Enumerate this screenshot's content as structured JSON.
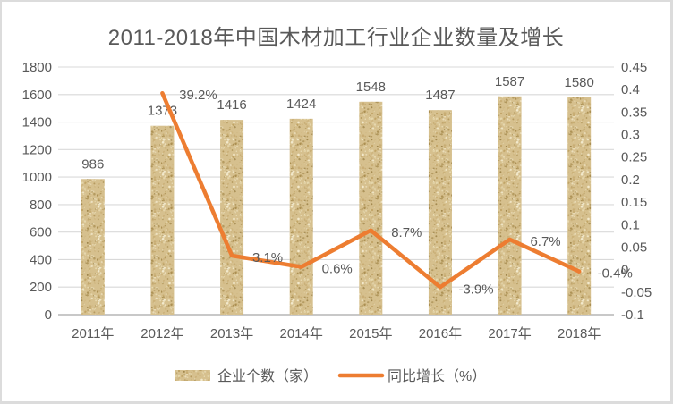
{
  "chart_data": {
    "type": "combo-bar-line",
    "title": "2011-2018年中国木材加工行业企业数量及增长",
    "categories": [
      "2011年",
      "2012年",
      "2013年",
      "2014年",
      "2015年",
      "2016年",
      "2017年",
      "2018年"
    ],
    "series": [
      {
        "name": "企业个数（家）",
        "chart_type": "bar",
        "axis": "left",
        "values": [
          986,
          1373,
          1416,
          1424,
          1548,
          1487,
          1587,
          1580
        ],
        "data_labels": [
          "986",
          "1373",
          "1416",
          "1424",
          "1548",
          "1487",
          "1587",
          "1580"
        ]
      },
      {
        "name": "同比增长（%）",
        "chart_type": "line",
        "axis": "right",
        "values": [
          null,
          0.392,
          0.031,
          0.006,
          0.087,
          -0.039,
          0.067,
          -0.004
        ],
        "data_labels": [
          "",
          "39.2%",
          "3.1%",
          "0.6%",
          "8.7%",
          "-3.9%",
          "6.7%",
          "-0.4%"
        ]
      }
    ],
    "left_axis": {
      "min": 0,
      "max": 1800,
      "tick_labels": [
        "1800",
        "1600",
        "1400",
        "1200",
        "1000",
        "800",
        "600",
        "400",
        "200",
        "0"
      ]
    },
    "right_axis": {
      "min": -0.1,
      "max": 0.45,
      "tick_labels": [
        "0.45",
        "0.4",
        "0.35",
        "0.3",
        "0.25",
        "0.2",
        "0.15",
        "0.1",
        "0.05",
        "0",
        "-0.05",
        "-0.1"
      ]
    },
    "grid": true,
    "legend_position": "bottom",
    "colors": {
      "text": "#595959",
      "grid": "#d9d9d9",
      "axis_line": "#c0c0c0",
      "line": "#ed7d31",
      "bar_base": "#d6c08e",
      "bar_speckles": [
        "#bfa263",
        "#e9dcb4",
        "#c8ad74",
        "#f2e9cc",
        "#ab8f52",
        "#9f854a"
      ]
    }
  }
}
